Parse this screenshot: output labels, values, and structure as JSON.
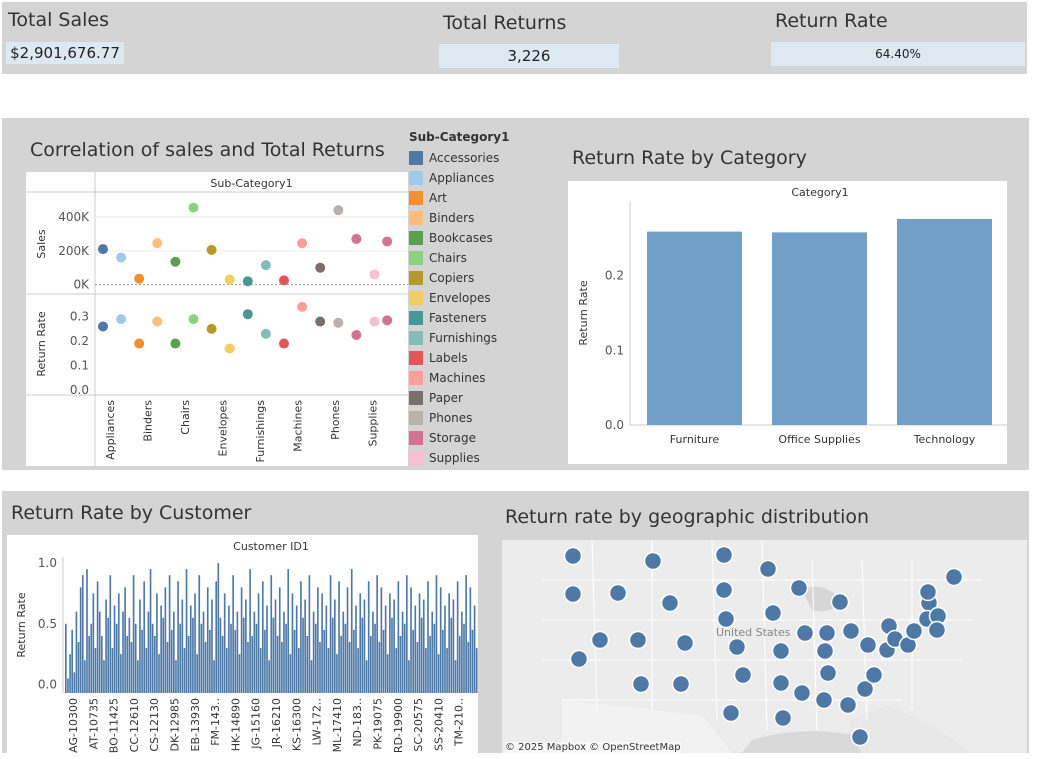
{
  "kpis": {
    "total_sales_title": "Total Sales",
    "total_sales_value": "$2,901,676.77",
    "total_returns_title": "Total Returns",
    "total_returns_value": "3,226",
    "return_rate_title": "Return Rate",
    "return_rate_value": "64.40%"
  },
  "correlation": {
    "title": "Correlation of sales and Total Returns",
    "header": "Sub-Category1",
    "sales_axis_label": "Sales",
    "rr_axis_label": "Return Rate",
    "sales_ticks": [
      "400K",
      "200K",
      "0K"
    ],
    "rr_ticks": [
      "0.3",
      "0.2",
      "0.1",
      "0.0"
    ],
    "x_labels": [
      "Appliances",
      "Binders",
      "Chairs",
      "Envelopes",
      "Furnishings",
      "Machines",
      "Phones",
      "Supplies"
    ],
    "legend_title": "Sub-Category1",
    "legend": [
      {
        "name": "Accessories",
        "color": "#4e79a7"
      },
      {
        "name": "Appliances",
        "color": "#a0cbe8"
      },
      {
        "name": "Art",
        "color": "#f28e2b"
      },
      {
        "name": "Binders",
        "color": "#ffbe7d"
      },
      {
        "name": "Bookcases",
        "color": "#59a14f"
      },
      {
        "name": "Chairs",
        "color": "#8cd17d"
      },
      {
        "name": "Copiers",
        "color": "#b6992d"
      },
      {
        "name": "Envelopes",
        "color": "#f1ce63"
      },
      {
        "name": "Fasteners",
        "color": "#499894"
      },
      {
        "name": "Furnishings",
        "color": "#86bcb6"
      },
      {
        "name": "Labels",
        "color": "#e15759"
      },
      {
        "name": "Machines",
        "color": "#ff9d9a"
      },
      {
        "name": "Paper",
        "color": "#79706e"
      },
      {
        "name": "Phones",
        "color": "#bab0ac"
      },
      {
        "name": "Storage",
        "color": "#d37295"
      },
      {
        "name": "Supplies",
        "color": "#fabfd2"
      }
    ],
    "chart_data": {
      "type": "scatter",
      "categories": [
        "Accessories",
        "Appliances",
        "Art",
        "Binders",
        "Bookcases",
        "Chairs",
        "Copiers",
        "Envelopes",
        "Fasteners",
        "Furnishings",
        "Labels",
        "Machines",
        "Paper",
        "Phones",
        "Storage",
        "Supplies"
      ],
      "series": [
        {
          "name": "Sales",
          "values": [
            210000,
            160000,
            35000,
            245000,
            135000,
            455000,
            205000,
            30000,
            20000,
            115000,
            25000,
            245000,
            100000,
            440000,
            270000,
            60000
          ]
        },
        {
          "name": "Return Rate",
          "values": [
            0.26,
            0.29,
            0.19,
            0.28,
            0.19,
            0.29,
            0.25,
            0.17,
            0.31,
            0.23,
            0.19,
            0.34,
            0.28,
            0.275,
            0.225,
            0.28
          ]
        }
      ],
      "extra_point": {
        "category": "Storage",
        "sales": 255000,
        "return_rate": 0.285
      },
      "ylim_sales": [
        -20000,
        500000
      ],
      "ylim_return_rate": [
        0,
        0.36
      ]
    }
  },
  "category": {
    "title": "Return Rate by Category",
    "header": "Category1",
    "y_label": "Return Rate",
    "y_ticks": [
      "0.2",
      "0.1",
      "0.0"
    ],
    "chart_data": {
      "type": "bar",
      "categories": [
        "Furniture",
        "Office Supplies",
        "Technology"
      ],
      "values": [
        0.259,
        0.258,
        0.276
      ],
      "ylim": [
        0,
        0.3
      ],
      "color": "#729fc7"
    }
  },
  "customer": {
    "title": "Return Rate by Customer",
    "header": "Customer ID1",
    "y_label": "Return Rate",
    "y_ticks": [
      "1.0",
      "0.5",
      "0.0"
    ],
    "x_labels": [
      "AG-10300",
      "AT-10735",
      "BO-11425",
      "CC-12610",
      "CS-12130",
      "DK-12985",
      "EB-13930",
      "FM-143..",
      "HK-14890",
      "JG-15160",
      "JR-16210",
      "KS-16300",
      "LW-172..",
      "ML-17410",
      "ND-183..",
      "PK-19075",
      "RD-19900",
      "SC-20575",
      "SS-20410",
      "TM-210.."
    ],
    "chart_data": {
      "type": "bar",
      "color": "#4e79a7",
      "ylim": [
        -0.07,
        1.05
      ],
      "values": [
        0.5,
        0.05,
        0.25,
        0.45,
        0.1,
        0.6,
        0.35,
        0.8,
        0.9,
        0.2,
        0.95,
        0.4,
        0.5,
        0.75,
        0.3,
        0.85,
        0.6,
        0.4,
        0.2,
        0.7,
        0.55,
        0.9,
        0.3,
        0.65,
        0.5,
        0.75,
        0.25,
        0.6,
        0.8,
        0.4,
        0.55,
        0.35,
        0.9,
        0.5,
        0.2,
        0.7,
        0.45,
        0.85,
        0.3,
        0.6,
        0.95,
        0.5,
        0.4,
        0.75,
        0.25,
        0.65,
        0.55,
        0.8,
        0.35,
        0.9,
        0.45,
        0.6,
        0.2,
        0.85,
        0.5,
        0.7,
        0.3,
        0.95,
        0.4,
        0.65,
        0.55,
        0.75,
        0.25,
        0.9,
        0.5,
        0.6,
        0.35,
        0.8,
        0.45,
        0.7,
        0.2,
        0.85,
        1.0,
        0.55,
        0.4,
        0.75,
        0.3,
        0.65,
        0.5,
        0.9,
        0.45,
        0.6,
        0.25,
        0.8,
        0.55,
        0.7,
        0.35,
        0.95,
        0.4,
        0.6,
        0.5,
        0.75,
        0.3,
        0.85,
        0.45,
        0.65,
        0.2,
        0.9,
        0.55,
        0.7,
        0.4,
        0.8,
        0.35,
        0.6,
        0.5,
        0.95,
        0.25,
        0.75,
        0.45,
        0.65,
        0.3,
        0.85,
        0.55,
        0.7,
        0.4,
        0.9,
        0.2,
        0.6,
        0.5,
        0.8,
        0.35,
        0.75,
        0.45,
        0.65,
        0.3,
        0.9,
        0.55,
        0.7,
        0.25,
        0.85,
        0.4,
        0.6,
        0.5,
        0.8,
        0.35,
        0.95,
        0.45,
        0.65,
        0.3,
        0.75,
        0.55,
        0.7,
        0.2,
        0.85,
        0.4,
        0.6,
        0.5,
        0.9,
        0.35,
        0.8,
        0.45,
        0.65,
        0.25,
        0.75,
        0.55,
        0.7,
        0.3,
        0.85,
        0.4,
        0.6,
        0.5,
        0.9,
        0.2,
        0.8,
        0.45,
        0.65,
        0.35,
        0.75,
        0.55,
        0.7,
        0.3,
        0.85,
        0.4,
        0.6,
        0.5,
        0.9,
        0.25,
        0.8,
        0.45,
        0.65,
        0.3,
        0.75,
        0.55,
        0.7,
        0.2,
        0.85,
        0.4,
        0.6,
        0.5,
        0.9,
        0.35,
        0.8,
        0.45,
        0.65,
        0.3
      ]
    }
  },
  "geo": {
    "title": "Return rate by geographic distribution",
    "attribution": "© 2025 Mapbox  © OpenStreetMap",
    "map_label": "United States",
    "dot_color": "#4e79a7"
  }
}
